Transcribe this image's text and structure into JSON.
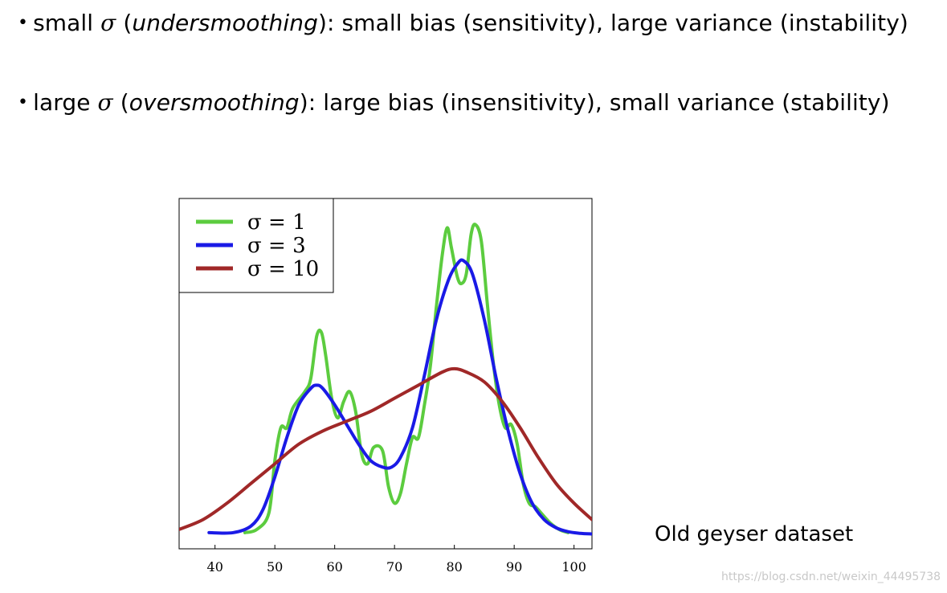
{
  "bullets": [
    {
      "symbol": "•",
      "lead": "small ",
      "greek": "σ",
      "open": " (",
      "term": "undersmoothing",
      "rest": "): small bias (sensitivity), large variance (instability)"
    },
    {
      "symbol": "•",
      "lead": "large ",
      "greek": "σ",
      "open": " (",
      "term": "oversmoothing",
      "rest": "): large bias (insensitivity), small variance (stability)"
    }
  ],
  "caption": "Old geyser dataset",
  "watermark": "https://blog.csdn.net/weixin_44495738",
  "chart_data": {
    "type": "line",
    "title": "",
    "xlabel": "",
    "ylabel": "",
    "xlim": [
      34,
      103
    ],
    "ylim": [
      0,
      1.0
    ],
    "grid": false,
    "legend_position": "top-left",
    "x_ticks": [
      40,
      50,
      60,
      70,
      80,
      90,
      100
    ],
    "series": [
      {
        "name": "σ = 1",
        "color": "#5ccc3f",
        "points": [
          [
            45,
            0.01
          ],
          [
            47,
            0.02
          ],
          [
            49,
            0.07
          ],
          [
            50,
            0.23
          ],
          [
            51,
            0.33
          ],
          [
            52,
            0.33
          ],
          [
            53,
            0.39
          ],
          [
            55,
            0.44
          ],
          [
            56,
            0.48
          ],
          [
            57,
            0.61
          ],
          [
            57.8,
            0.62
          ],
          [
            58.5,
            0.55
          ],
          [
            59.5,
            0.42
          ],
          [
            60.5,
            0.36
          ],
          [
            61.5,
            0.41
          ],
          [
            62.5,
            0.44
          ],
          [
            63.5,
            0.38
          ],
          [
            64.5,
            0.25
          ],
          [
            65.5,
            0.22
          ],
          [
            66.5,
            0.27
          ],
          [
            68,
            0.26
          ],
          [
            69,
            0.15
          ],
          [
            70,
            0.1
          ],
          [
            71,
            0.13
          ],
          [
            72,
            0.22
          ],
          [
            73,
            0.3
          ],
          [
            74,
            0.3
          ],
          [
            75,
            0.4
          ],
          [
            76,
            0.52
          ],
          [
            77,
            0.7
          ],
          [
            78,
            0.86
          ],
          [
            78.8,
            0.94
          ],
          [
            79.5,
            0.88
          ],
          [
            80.5,
            0.79
          ],
          [
            81.2,
            0.77
          ],
          [
            82,
            0.8
          ],
          [
            82.8,
            0.92
          ],
          [
            83.5,
            0.95
          ],
          [
            84.5,
            0.9
          ],
          [
            85.5,
            0.71
          ],
          [
            86.5,
            0.53
          ],
          [
            87.5,
            0.4
          ],
          [
            88.5,
            0.33
          ],
          [
            89.5,
            0.34
          ],
          [
            90.5,
            0.28
          ],
          [
            91.5,
            0.16
          ],
          [
            92.5,
            0.1
          ],
          [
            93.5,
            0.09
          ],
          [
            94.5,
            0.07
          ],
          [
            96,
            0.04
          ],
          [
            97.5,
            0.02
          ],
          [
            99,
            0.01
          ]
        ]
      },
      {
        "name": "σ = 3",
        "color": "#1a1ae6",
        "points": [
          [
            39,
            0.01
          ],
          [
            43,
            0.01
          ],
          [
            46,
            0.03
          ],
          [
            48,
            0.08
          ],
          [
            50,
            0.18
          ],
          [
            52,
            0.3
          ],
          [
            54,
            0.4
          ],
          [
            56,
            0.45
          ],
          [
            57,
            0.46
          ],
          [
            58,
            0.45
          ],
          [
            60,
            0.4
          ],
          [
            62,
            0.34
          ],
          [
            64,
            0.28
          ],
          [
            66,
            0.23
          ],
          [
            68,
            0.21
          ],
          [
            69.5,
            0.21
          ],
          [
            71,
            0.24
          ],
          [
            73,
            0.33
          ],
          [
            75,
            0.49
          ],
          [
            77,
            0.66
          ],
          [
            79,
            0.78
          ],
          [
            80.5,
            0.83
          ],
          [
            81.5,
            0.84
          ],
          [
            83,
            0.8
          ],
          [
            85,
            0.66
          ],
          [
            87,
            0.48
          ],
          [
            89,
            0.32
          ],
          [
            91,
            0.19
          ],
          [
            93,
            0.1
          ],
          [
            95,
            0.05
          ],
          [
            97,
            0.025
          ],
          [
            99,
            0.013
          ],
          [
            101,
            0.008
          ],
          [
            103,
            0.006
          ]
        ]
      },
      {
        "name": "σ = 10",
        "color": "#a02828",
        "points": [
          [
            34,
            0.02
          ],
          [
            38,
            0.05
          ],
          [
            42,
            0.1
          ],
          [
            46,
            0.16
          ],
          [
            50,
            0.22
          ],
          [
            54,
            0.28
          ],
          [
            58,
            0.32
          ],
          [
            62,
            0.35
          ],
          [
            66,
            0.38
          ],
          [
            70,
            0.42
          ],
          [
            74,
            0.46
          ],
          [
            78,
            0.5
          ],
          [
            80,
            0.51
          ],
          [
            82,
            0.5
          ],
          [
            85,
            0.47
          ],
          [
            88,
            0.41
          ],
          [
            91,
            0.33
          ],
          [
            94,
            0.24
          ],
          [
            97,
            0.16
          ],
          [
            100,
            0.1
          ],
          [
            103,
            0.05
          ]
        ]
      }
    ]
  }
}
